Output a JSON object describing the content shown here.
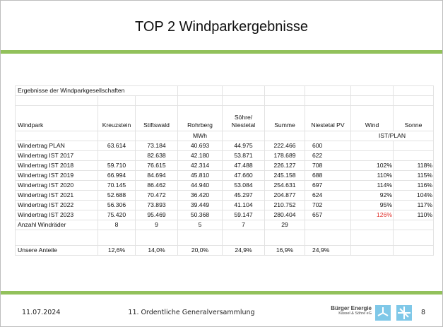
{
  "header": {
    "title": "TOP 2 Windparkergebnisse"
  },
  "table": {
    "caption": "Ergebnisse der Windparkgesellschaften",
    "columns": [
      "Windpark",
      "Kreuzstein",
      "Stiftswald",
      "Rohrberg",
      "Söhre/\nNiestetal",
      "Summe",
      "Niestetal PV",
      "Wind",
      "Sonne"
    ],
    "units": {
      "energy": "MWh",
      "ratio": "IST/PLAN"
    },
    "rows": [
      {
        "label": "Windertrag PLAN",
        "cells": [
          "63.614",
          "73.184",
          "40.693",
          "44.975",
          "222.466",
          "600",
          null,
          null
        ]
      },
      {
        "label": "Windertrag IST 2017",
        "cells": [
          null,
          "82.638",
          "42.180",
          "53.871",
          "178.689",
          "622",
          null,
          null
        ]
      },
      {
        "label": "Windertrag IST 2018",
        "cells": [
          "59.710",
          "76.615",
          "42.314",
          "47.488",
          "226.127",
          "708",
          "102%",
          "118%"
        ]
      },
      {
        "label": "Windertrag IST 2019",
        "cells": [
          "66.994",
          "84.694",
          "45.810",
          "47.660",
          "245.158",
          "688",
          "110%",
          "115%"
        ]
      },
      {
        "label": "Windertrag IST 2020",
        "cells": [
          "70.145",
          "86.462",
          "44.940",
          "53.084",
          "254.631",
          "697",
          "114%",
          "116%"
        ]
      },
      {
        "label": "Windertrag IST 2021",
        "cells": [
          "52.688",
          "70.472",
          "36.420",
          "45.297",
          "204.877",
          "624",
          "92%",
          "104%"
        ]
      },
      {
        "label": "Windertrag IST 2022",
        "cells": [
          "56.306",
          "73.893",
          "39.449",
          "41.104",
          "210.752",
          "702",
          "95%",
          "117%"
        ]
      },
      {
        "label": "Windertrag IST 2023",
        "cells": [
          "75.420",
          "95.469",
          "50.368",
          "59.147",
          "280.404",
          "657",
          "126%",
          "110%"
        ]
      },
      {
        "label": "Anzahl Windräder",
        "cells": [
          "8",
          "9",
          "5",
          "7",
          "29",
          null,
          null,
          null
        ]
      }
    ],
    "shares": {
      "label": "Unsere Anteile",
      "cells": [
        "12,6%",
        "14,0%",
        "20,0%",
        "24,9%",
        "16,9%",
        "24,9%",
        null,
        null
      ]
    }
  },
  "footer": {
    "date": "11.07.2024",
    "event": "11. Ordentliche Generalversammlung",
    "logo_line1": "Bürger Energie",
    "logo_line2": "Kassel & Söhre eG",
    "page": "8"
  }
}
